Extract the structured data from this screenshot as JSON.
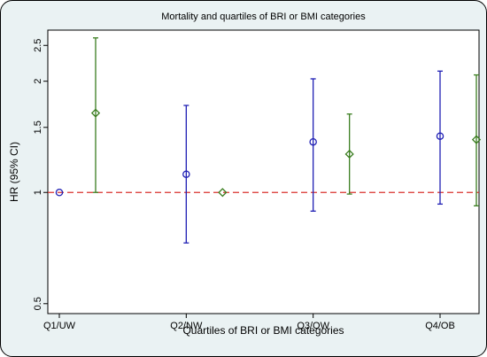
{
  "chart_data": {
    "type": "scatter",
    "title": "Mortality  and quartiles of BRI or BMI categories",
    "xlabel": "Quartiles of BRI or BMI categories",
    "ylabel": "HR (95% CI)",
    "y_scale": "log",
    "ylim": [
      0.47,
      2.75
    ],
    "y_ticks": [
      0.5,
      1,
      1.5,
      2,
      2.5
    ],
    "y_tick_labels": [
      "0.5",
      "1",
      "1.5",
      "2",
      "2.5"
    ],
    "categories": [
      "Q1/UW",
      "Q2/NW",
      "Q3/OW",
      "Q4/OB"
    ],
    "reference_line": 1,
    "grid": false,
    "legend": "none",
    "series": [
      {
        "marker": "circle",
        "color": "#1f1fb4",
        "points": [
          {
            "category": "Q1/UW",
            "hr": 1.0,
            "lower": 1.0,
            "upper": 1.0
          },
          {
            "category": "Q2/NW",
            "hr": 1.12,
            "lower": 0.73,
            "upper": 1.72
          },
          {
            "category": "Q3/OW",
            "hr": 1.37,
            "lower": 0.89,
            "upper": 2.03
          },
          {
            "category": "Q4/OB",
            "hr": 1.42,
            "lower": 0.93,
            "upper": 2.13
          }
        ]
      },
      {
        "marker": "diamond",
        "color": "#3a7d1f",
        "points": [
          {
            "category": "Q1/UW",
            "hr": 1.64,
            "lower": 1.0,
            "upper": 2.62
          },
          {
            "category": "Q2/NW",
            "hr": 1.0,
            "lower": 1.0,
            "upper": 1.0
          },
          {
            "category": "Q3/OW",
            "hr": 1.27,
            "lower": 0.99,
            "upper": 1.63
          },
          {
            "category": "Q4/OB",
            "hr": 1.39,
            "lower": 0.92,
            "upper": 2.08
          }
        ]
      }
    ],
    "colors": {
      "frame_bg": "#eaf2f3",
      "plot_bg": "#ffffff",
      "reference_line": "#d9302c"
    }
  }
}
